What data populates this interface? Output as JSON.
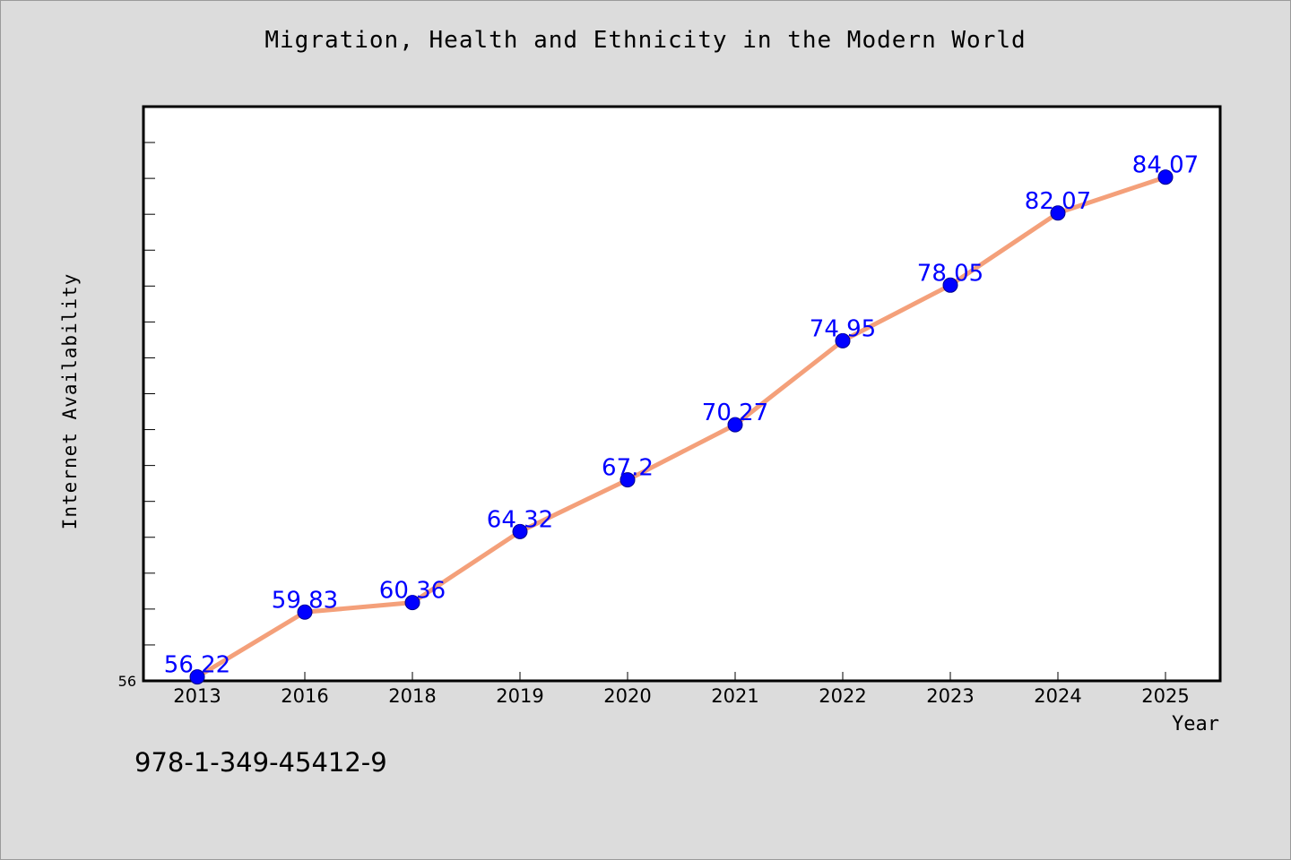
{
  "chart_data": {
    "type": "line",
    "title": "Migration, Health and Ethnicity in the Modern World",
    "xlabel": "Year",
    "ylabel": "Internet Availability",
    "categories": [
      "2013",
      "2016",
      "2018",
      "2019",
      "2020",
      "2021",
      "2022",
      "2023",
      "2024",
      "2025"
    ],
    "series": [
      {
        "values": [
          56.22,
          59.83,
          60.36,
          64.32,
          67.2,
          70.27,
          74.95,
          78.05,
          82.07,
          84.07
        ],
        "labels": [
          "56.22",
          "59.83",
          "60.36",
          "64.32",
          "67.2",
          "70.27",
          "74.95",
          "78.05",
          "82.07",
          "84.07"
        ]
      }
    ],
    "ylim": [
      56,
      88
    ],
    "yticks_labeled": [
      "56"
    ],
    "grid": false,
    "line_color": "#f4a07a",
    "marker_color": "#0000ff",
    "label_color": "#0000ff"
  },
  "footer": {
    "isbn": "978-1-349-45412-9"
  }
}
